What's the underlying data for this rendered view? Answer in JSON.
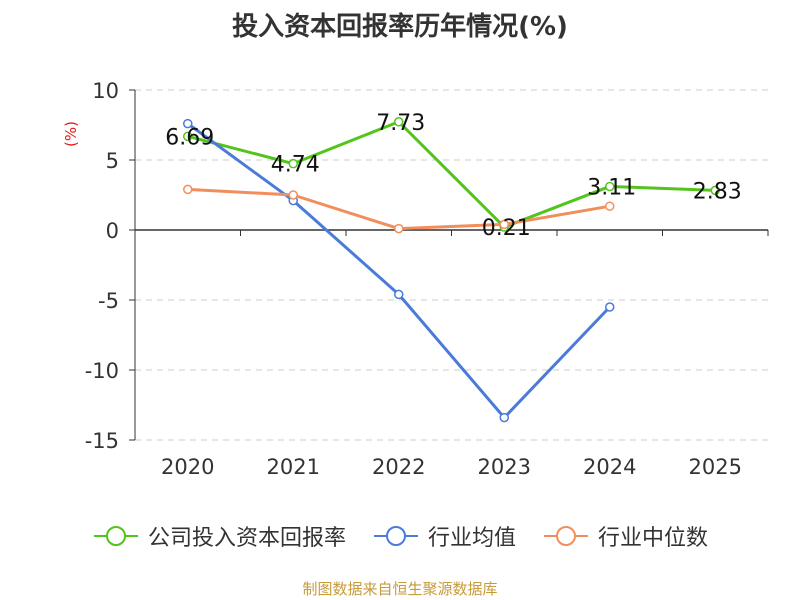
{
  "chart_data": {
    "type": "line",
    "title": "投入资本回报率历年情况(%)",
    "ylabel": "(%)",
    "categories": [
      "2020",
      "2021",
      "2022",
      "2023",
      "2024",
      "2025"
    ],
    "ylim": [
      -15,
      10
    ],
    "yticks": [
      10,
      5,
      0,
      -5,
      -10,
      -15
    ],
    "grid": true,
    "legend_position": "bottom",
    "series": [
      {
        "name": "公司投入资本回报率",
        "color": "#52c41a",
        "values": [
          6.69,
          4.74,
          7.73,
          0.21,
          3.11,
          2.83
        ],
        "labels": [
          "6.69",
          "4.74",
          "7.73",
          "0.21",
          "3.11",
          "2.83"
        ]
      },
      {
        "name": "行业均值",
        "color": "#4a7bd8",
        "values": [
          7.6,
          2.1,
          -4.6,
          -13.4,
          -5.5,
          null
        ]
      },
      {
        "name": "行业中位数",
        "color": "#f28e5c",
        "values": [
          2.9,
          2.5,
          0.1,
          0.4,
          1.7,
          null
        ]
      }
    ]
  },
  "source_text": "制图数据来自恒生聚源数据库"
}
